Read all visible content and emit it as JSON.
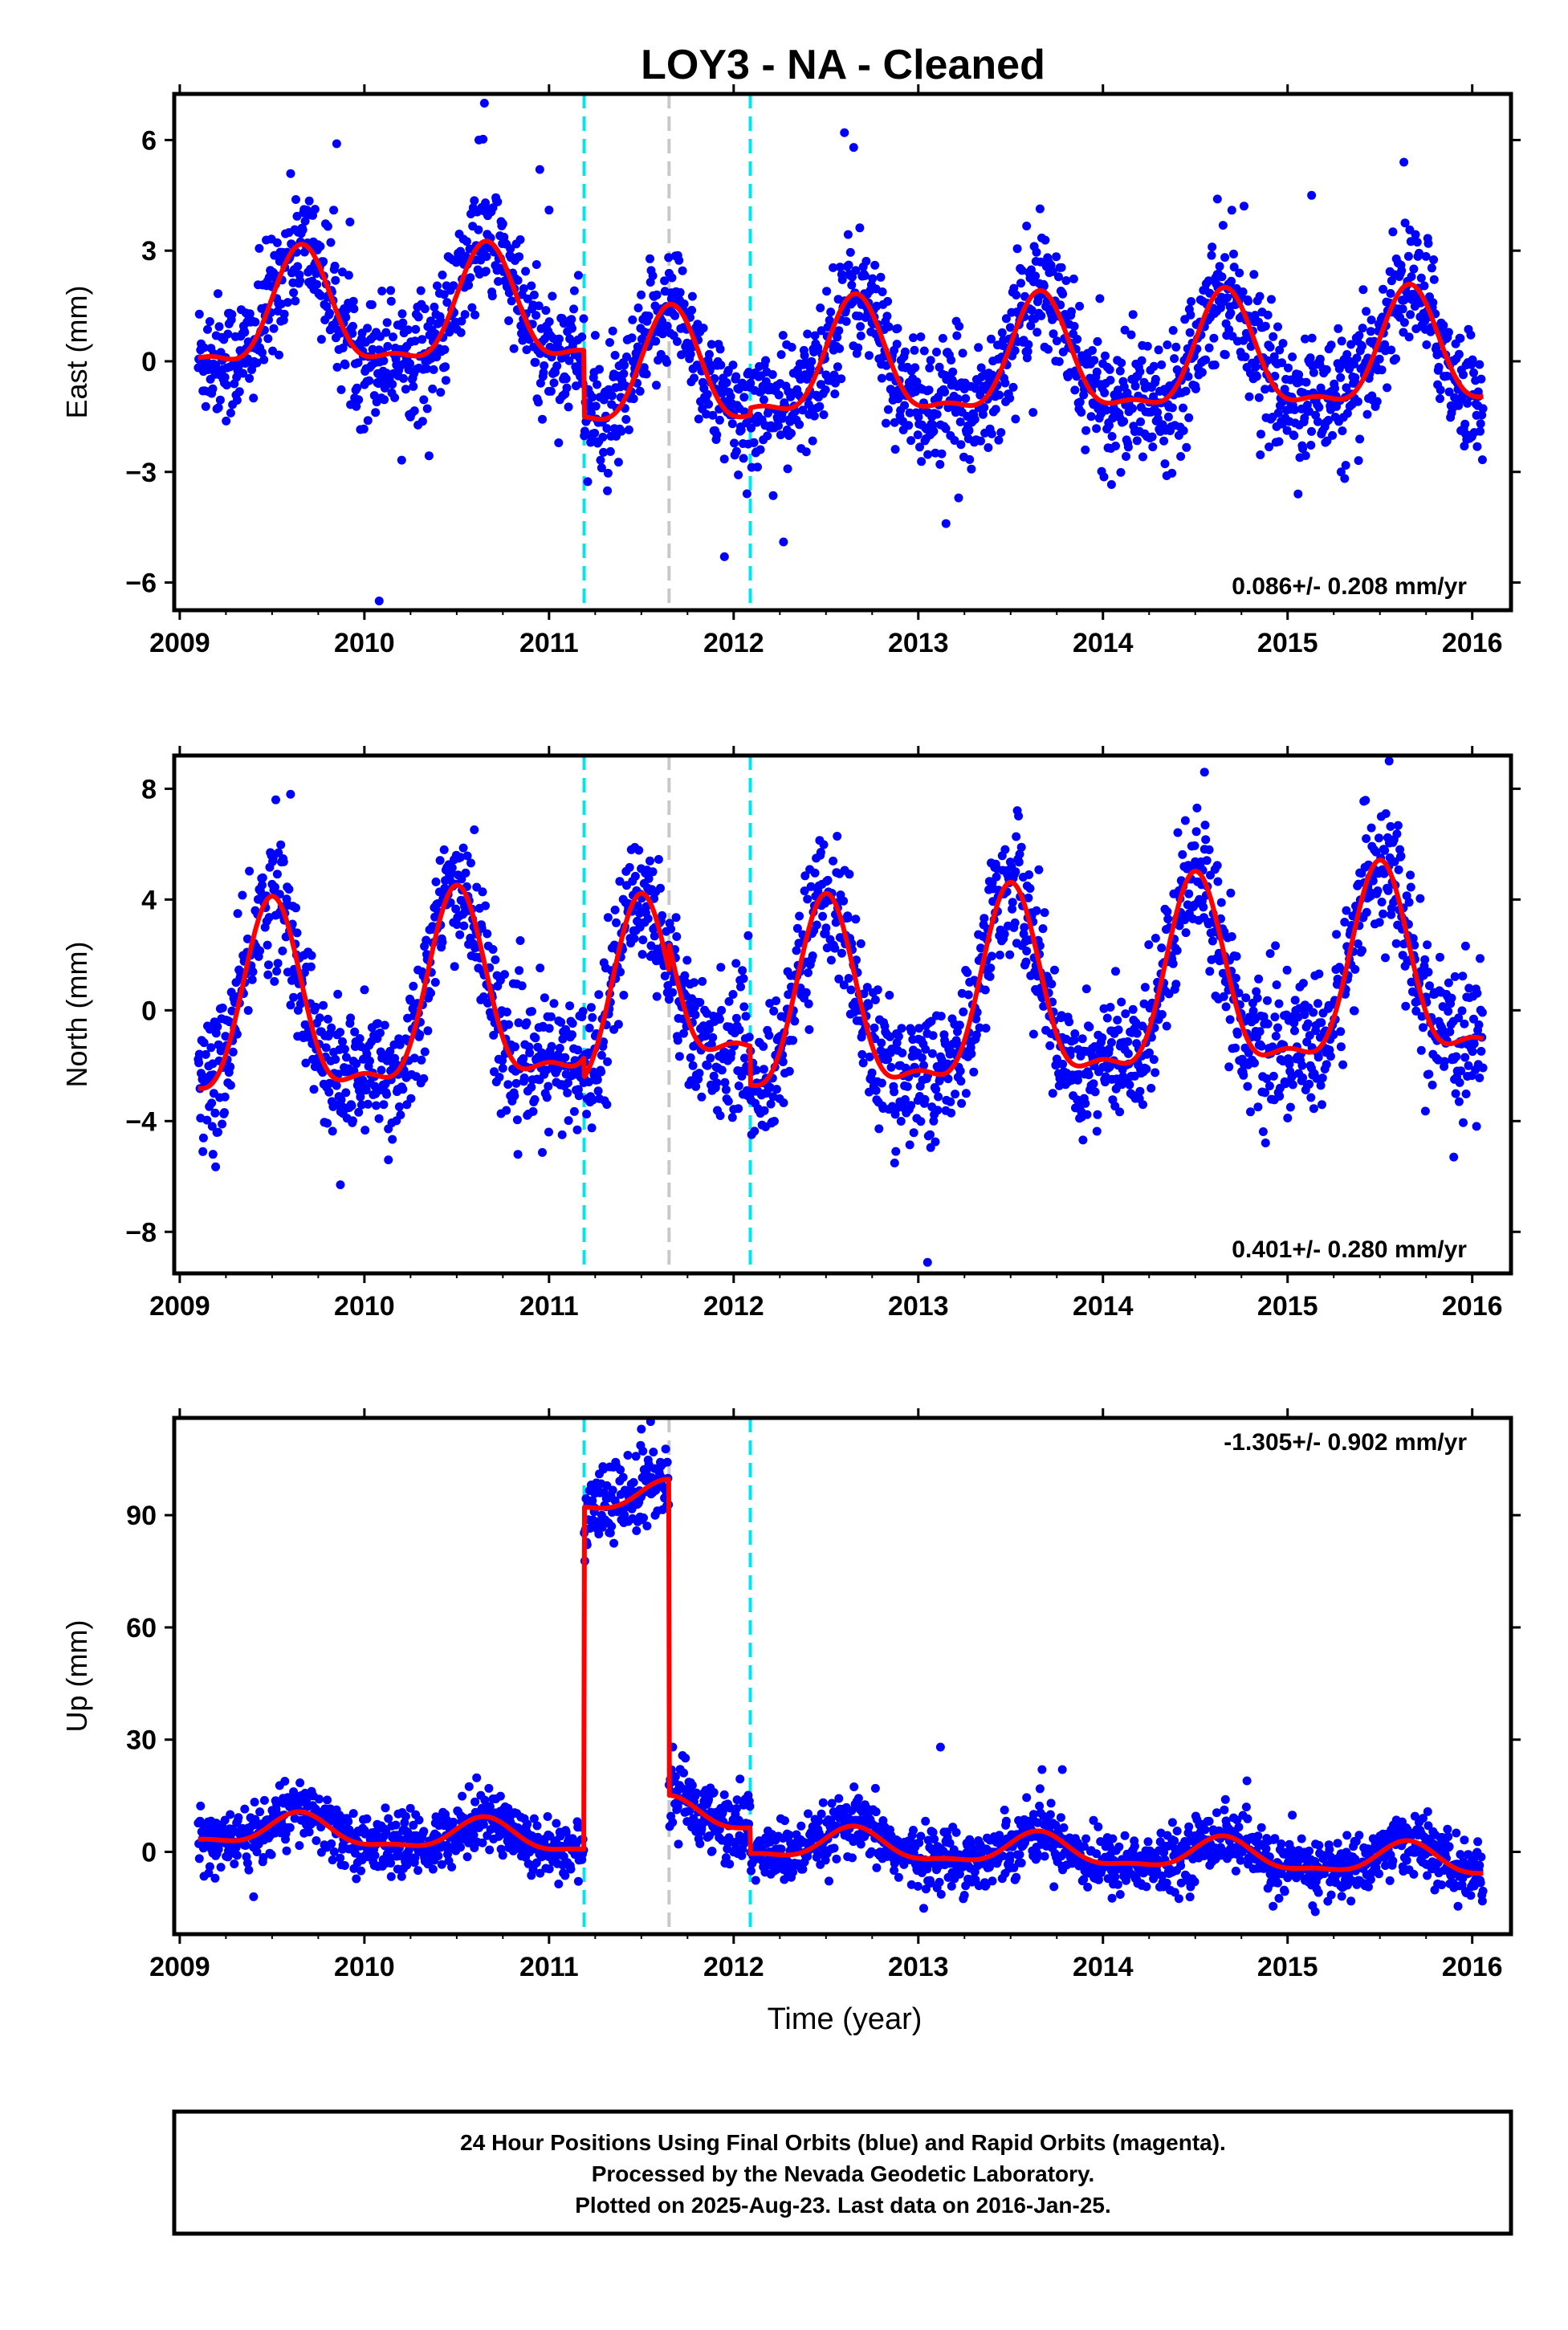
{
  "title": "LOY3  - NA - Cleaned",
  "xlabel": "Time (year)",
  "footer": {
    "line1": "24 Hour Positions Using Final Orbits (blue) and Rapid Orbits (magenta).",
    "line2": "Processed by the Nevada Geodetic Laboratory.",
    "line3": "Plotted on 2025-Aug-23. Last data on 2016-Jan-25."
  },
  "colors": {
    "points": "#0000ff",
    "model": "#ff0000",
    "offset_line": "#00e5ee",
    "event_line": "#c8c8c8",
    "frame": "#000000"
  },
  "chart_data": [
    {
      "type": "scatter",
      "component": "east",
      "ylabel": "East (mm)",
      "rate_label": "0.086+/- 0.208 mm/yr",
      "rate_position": "bottom-right",
      "x_range": [
        2008.97,
        2016.21
      ],
      "y_range": [
        -6.75,
        7.25
      ],
      "x_ticks": [
        2009,
        2010,
        2011,
        2012,
        2013,
        2014,
        2015,
        2016
      ],
      "x_tick_labels": [
        "2009",
        "2010",
        "2011",
        "2012",
        "2013",
        "2014",
        "2015",
        "2016"
      ],
      "y_ticks": [
        -6,
        -3,
        0,
        3,
        6
      ],
      "y_tick_labels": [
        "−6",
        "−3",
        "0",
        "3",
        "6"
      ],
      "data_start": 2009.1,
      "data_end": 2016.06,
      "offset_lines": [
        2011.19,
        2012.09
      ],
      "event_lines": [
        2011.65
      ],
      "seasonal": {
        "amplitude": 1.5,
        "peak_year_fraction": 0.66
      },
      "segment_means": [
        {
          "start": 2009.1,
          "end": 2011.19,
          "mean": 1.4
        },
        {
          "start": 2011.19,
          "end": 2012.09,
          "mean": -0.4
        },
        {
          "start": 2012.09,
          "end": 2016.06,
          "mean": -0.2
        }
      ],
      "trend_per_year": 0.086,
      "scatter_sigma": 0.85,
      "outliers": [
        {
          "x": 2010.08,
          "y": -6.5
        },
        {
          "x": 2010.65,
          "y": 7.0
        },
        {
          "x": 2010.62,
          "y": 6.0
        },
        {
          "x": 2012.6,
          "y": 6.2
        },
        {
          "x": 2012.65,
          "y": 5.8
        },
        {
          "x": 2009.85,
          "y": 5.9
        },
        {
          "x": 2011.95,
          "y": -5.3
        },
        {
          "x": 2012.27,
          "y": -4.9
        },
        {
          "x": 2013.15,
          "y": -4.4
        },
        {
          "x": 2015.63,
          "y": 5.4
        },
        {
          "x": 2014.62,
          "y": 4.4
        },
        {
          "x": 2015.13,
          "y": 4.5
        },
        {
          "x": 2010.95,
          "y": 5.2
        },
        {
          "x": 2011.0,
          "y": 4.1
        }
      ]
    },
    {
      "type": "scatter",
      "component": "north",
      "ylabel": "North (mm)",
      "rate_label": "0.401+/- 0.280 mm/yr",
      "rate_position": "bottom-right",
      "x_range": [
        2008.97,
        2016.21
      ],
      "y_range": [
        -9.5,
        9.2
      ],
      "x_ticks": [
        2009,
        2010,
        2011,
        2012,
        2013,
        2014,
        2015,
        2016
      ],
      "x_tick_labels": [
        "2009",
        "2010",
        "2011",
        "2012",
        "2013",
        "2014",
        "2015",
        "2016"
      ],
      "y_ticks": [
        -8,
        -4,
        0,
        4,
        8
      ],
      "y_tick_labels": [
        "−8",
        "−4",
        "0",
        "4",
        "8"
      ],
      "data_start": 2009.1,
      "data_end": 2016.06,
      "offset_lines": [
        2011.19,
        2012.09
      ],
      "event_lines": [
        2011.65
      ],
      "seasonal": {
        "amplitude": 3.3,
        "peak_year_fraction": 0.5
      },
      "segment_means": [
        {
          "start": 2009.1,
          "end": 2011.19,
          "mean": 0.9
        },
        {
          "start": 2011.19,
          "end": 2011.65,
          "mean": 0.2
        },
        {
          "start": 2011.65,
          "end": 2012.09,
          "mean": 1.2
        },
        {
          "start": 2012.09,
          "end": 2016.06,
          "mean": -0.2
        }
      ],
      "trend_per_year": 0.401,
      "scatter_sigma": 1.2,
      "outliers": [
        {
          "x": 2009.87,
          "y": -6.3
        },
        {
          "x": 2013.05,
          "y": -9.1
        },
        {
          "x": 2015.55,
          "y": 9.0
        },
        {
          "x": 2014.55,
          "y": 8.6
        },
        {
          "x": 2009.52,
          "y": 7.6
        },
        {
          "x": 2009.6,
          "y": 7.8
        },
        {
          "x": 2010.13,
          "y": -5.4
        },
        {
          "x": 2015.9,
          "y": -5.3
        },
        {
          "x": 2009.18,
          "y": -5.2
        }
      ]
    },
    {
      "type": "scatter",
      "component": "up",
      "ylabel": "Up (mm)",
      "rate_label": "-1.305+/- 0.902 mm/yr",
      "rate_position": "top-right",
      "x_range": [
        2008.97,
        2016.21
      ],
      "y_range": [
        -22,
        116
      ],
      "x_ticks": [
        2009,
        2010,
        2011,
        2012,
        2013,
        2014,
        2015,
        2016
      ],
      "x_tick_labels": [
        "2009",
        "2010",
        "2011",
        "2012",
        "2013",
        "2014",
        "2015",
        "2016"
      ],
      "y_ticks": [
        0,
        30,
        60,
        90
      ],
      "y_tick_labels": [
        "0",
        "30",
        "60",
        "90"
      ],
      "data_start": 2009.1,
      "data_end": 2016.06,
      "offset_lines": [
        2011.19,
        2012.09
      ],
      "event_lines": [
        2011.65
      ],
      "seasonal": {
        "amplitude": 4.0,
        "peak_year_fraction": 0.65
      },
      "segment_means": [
        {
          "start": 2009.1,
          "end": 2011.19,
          "mean": 1.5
        },
        {
          "start": 2011.19,
          "end": 2011.65,
          "mean": 93.0
        },
        {
          "start": 2011.65,
          "end": 2012.09,
          "mean": 8.5
        },
        {
          "start": 2012.09,
          "end": 2016.06,
          "mean": 1.6
        }
      ],
      "trend_per_year": -1.305,
      "scatter_sigma": 4.0,
      "segment_extra_sigma": [
        0,
        6,
        3,
        0
      ],
      "outliers": [
        {
          "x": 2011.55,
          "y": 115
        },
        {
          "x": 2011.5,
          "y": 113
        },
        {
          "x": 2013.12,
          "y": 28
        },
        {
          "x": 2013.67,
          "y": 22
        },
        {
          "x": 2013.78,
          "y": 22
        },
        {
          "x": 2014.78,
          "y": 19
        },
        {
          "x": 2011.67,
          "y": 28
        },
        {
          "x": 2009.4,
          "y": -12
        },
        {
          "x": 2015.15,
          "y": -16
        }
      ]
    }
  ]
}
